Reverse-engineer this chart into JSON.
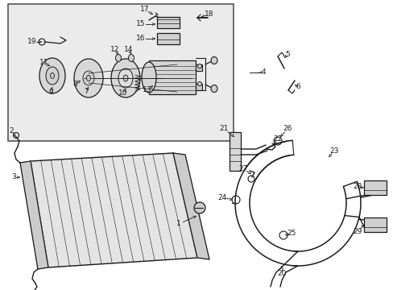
{
  "bg_color": "#ffffff",
  "box_bg": "#e8e8e8",
  "lc": "#1a1a1a",
  "fs": 6.5,
  "fig_w": 4.89,
  "fig_h": 3.6,
  "dpi": 100
}
